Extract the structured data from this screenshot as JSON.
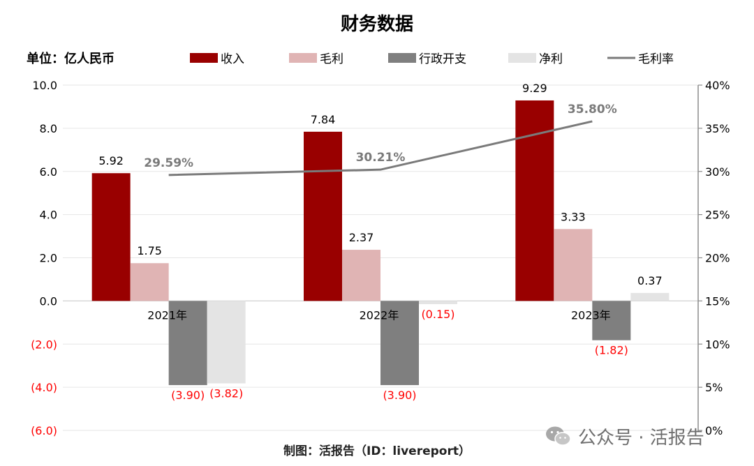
{
  "title": "财务数据",
  "unit": "单位：亿人民币",
  "footer": "制图：活报告（ID：livereport）",
  "watermark": "公众号 · 活报告",
  "watermark_icon": "wechat-icon",
  "colors": {
    "revenue": "#990000",
    "gross_profit": "#e0b4b4",
    "admin_expense": "#7f7f7f",
    "net_profit": "#e4e4e4",
    "rate_line": "#7a7a7a",
    "negative_label": "#ff0000",
    "grid": "#e6e6e6"
  },
  "chart_data": {
    "type": "bar",
    "title": "财务数据",
    "categories": [
      "2021年",
      "2022年",
      "2023年"
    ],
    "series": [
      {
        "name": "收入",
        "values": [
          5.92,
          7.84,
          9.29
        ],
        "labels": [
          "5.92",
          "7.84",
          "9.29"
        ]
      },
      {
        "name": "毛利",
        "values": [
          1.75,
          2.37,
          3.33
        ],
        "labels": [
          "1.75",
          "2.37",
          "3.33"
        ]
      },
      {
        "name": "行政开支",
        "values": [
          -3.9,
          -3.9,
          -1.82
        ],
        "labels": [
          "(3.90)",
          "(3.90)",
          "(1.82)"
        ]
      },
      {
        "name": "净利",
        "values": [
          -3.82,
          -0.15,
          0.37
        ],
        "labels": [
          "(3.82)",
          "(0.15)",
          "0.37"
        ]
      }
    ],
    "line_series": {
      "name": "毛利率",
      "values": [
        29.59,
        30.21,
        35.8
      ],
      "labels": [
        "29.59%",
        "30.21%",
        "35.80%"
      ],
      "axis": "right"
    },
    "y_left": {
      "min": -6,
      "max": 10,
      "ticks": [
        "(6.0)",
        "(4.0)",
        "(2.0)",
        "0.0",
        "2.0",
        "4.0",
        "6.0",
        "8.0",
        "10.0"
      ],
      "tick_values": [
        -6,
        -4,
        -2,
        0,
        2,
        4,
        6,
        8,
        10
      ]
    },
    "y_right": {
      "min": 0,
      "max": 40,
      "ticks": [
        "0%",
        "5%",
        "10%",
        "15%",
        "20%",
        "25%",
        "30%",
        "35%",
        "40%"
      ],
      "tick_values": [
        0,
        5,
        10,
        15,
        20,
        25,
        30,
        35,
        40
      ]
    },
    "grid": true,
    "legend_position": "top"
  }
}
